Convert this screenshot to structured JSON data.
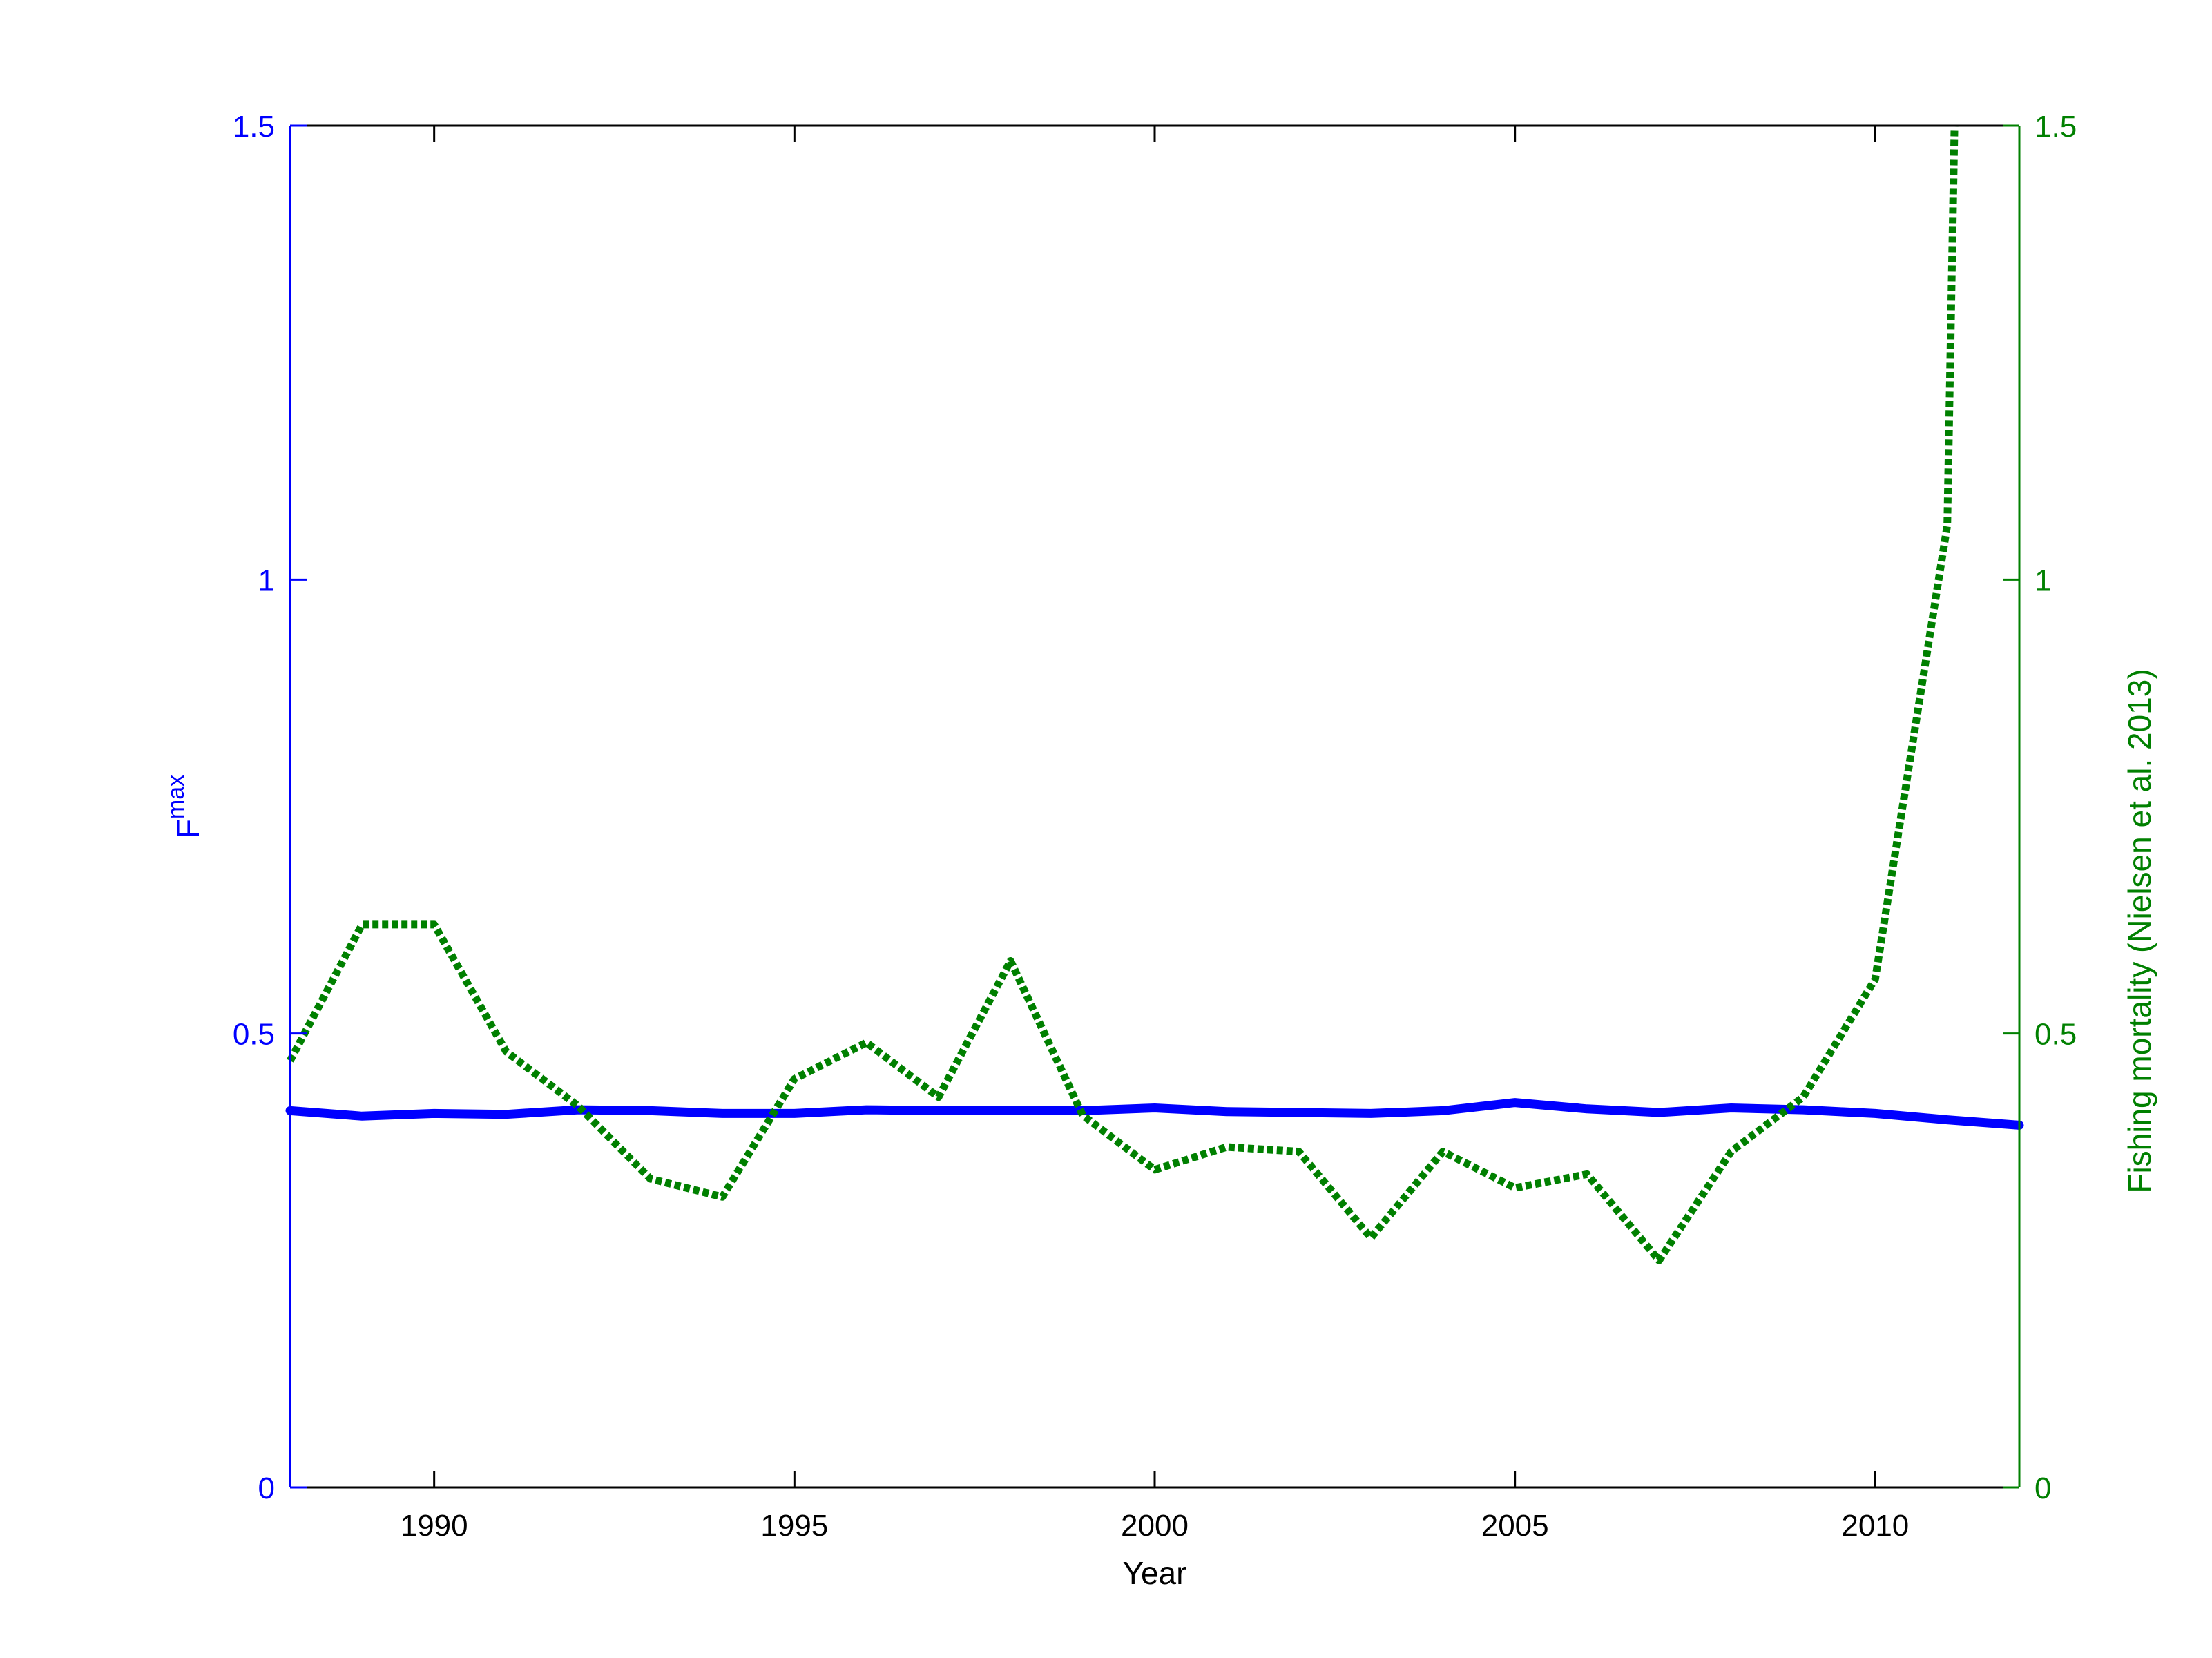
{
  "chart_data": {
    "type": "line",
    "xlabel": "Year",
    "ylabel_left": {
      "base": "F",
      "superscript": "max"
    },
    "ylabel_right": "Fishing mortality (Nielsen et al. 2013)",
    "xlim": [
      1988,
      2012
    ],
    "ylim_left": [
      0,
      1.5
    ],
    "ylim_right": [
      0,
      1.5
    ],
    "x_ticks": [
      "1990",
      "1995",
      "2000",
      "2005",
      "2010"
    ],
    "y_ticks_left": [
      "0",
      "0.5",
      "1",
      "1.5"
    ],
    "y_ticks_right": [
      "0",
      "0.5",
      "1",
      "1.5"
    ],
    "grid": false,
    "colors": {
      "left_axis": "#0000ff",
      "right_axis": "#008000",
      "axis": "#000000"
    },
    "series": [
      {
        "axis": "left",
        "style": "solid",
        "color": "#0000ff",
        "x": [
          1988,
          1989,
          1990,
          1991,
          1992,
          1993,
          1994,
          1995,
          1996,
          1997,
          1998,
          1999,
          2000,
          2001,
          2002,
          2003,
          2004,
          2005,
          2006,
          2007,
          2008,
          2009,
          2010,
          2011,
          2012
        ],
        "y": [
          0.415,
          0.409,
          0.412,
          0.411,
          0.416,
          0.415,
          0.412,
          0.412,
          0.416,
          0.415,
          0.415,
          0.415,
          0.418,
          0.414,
          0.413,
          0.412,
          0.415,
          0.424,
          0.417,
          0.413,
          0.418,
          0.416,
          0.412,
          0.405,
          0.399
        ]
      },
      {
        "axis": "right",
        "style": "dotted",
        "color": "#008000",
        "x": [
          1988,
          1989,
          1990,
          1991,
          1992,
          1993,
          1994,
          1995,
          1996,
          1997,
          1998,
          1999,
          2000,
          2001,
          2002,
          2003,
          2004,
          2005,
          2006,
          2007,
          2008,
          2009,
          2010,
          2011,
          2011.1
        ],
        "y": [
          0.47,
          0.62,
          0.62,
          0.48,
          0.42,
          0.34,
          0.32,
          0.45,
          0.49,
          0.43,
          0.58,
          0.41,
          0.35,
          0.375,
          0.37,
          0.275,
          0.37,
          0.33,
          0.345,
          0.25,
          0.37,
          0.43,
          0.56,
          1.06,
          1.5
        ]
      }
    ]
  }
}
